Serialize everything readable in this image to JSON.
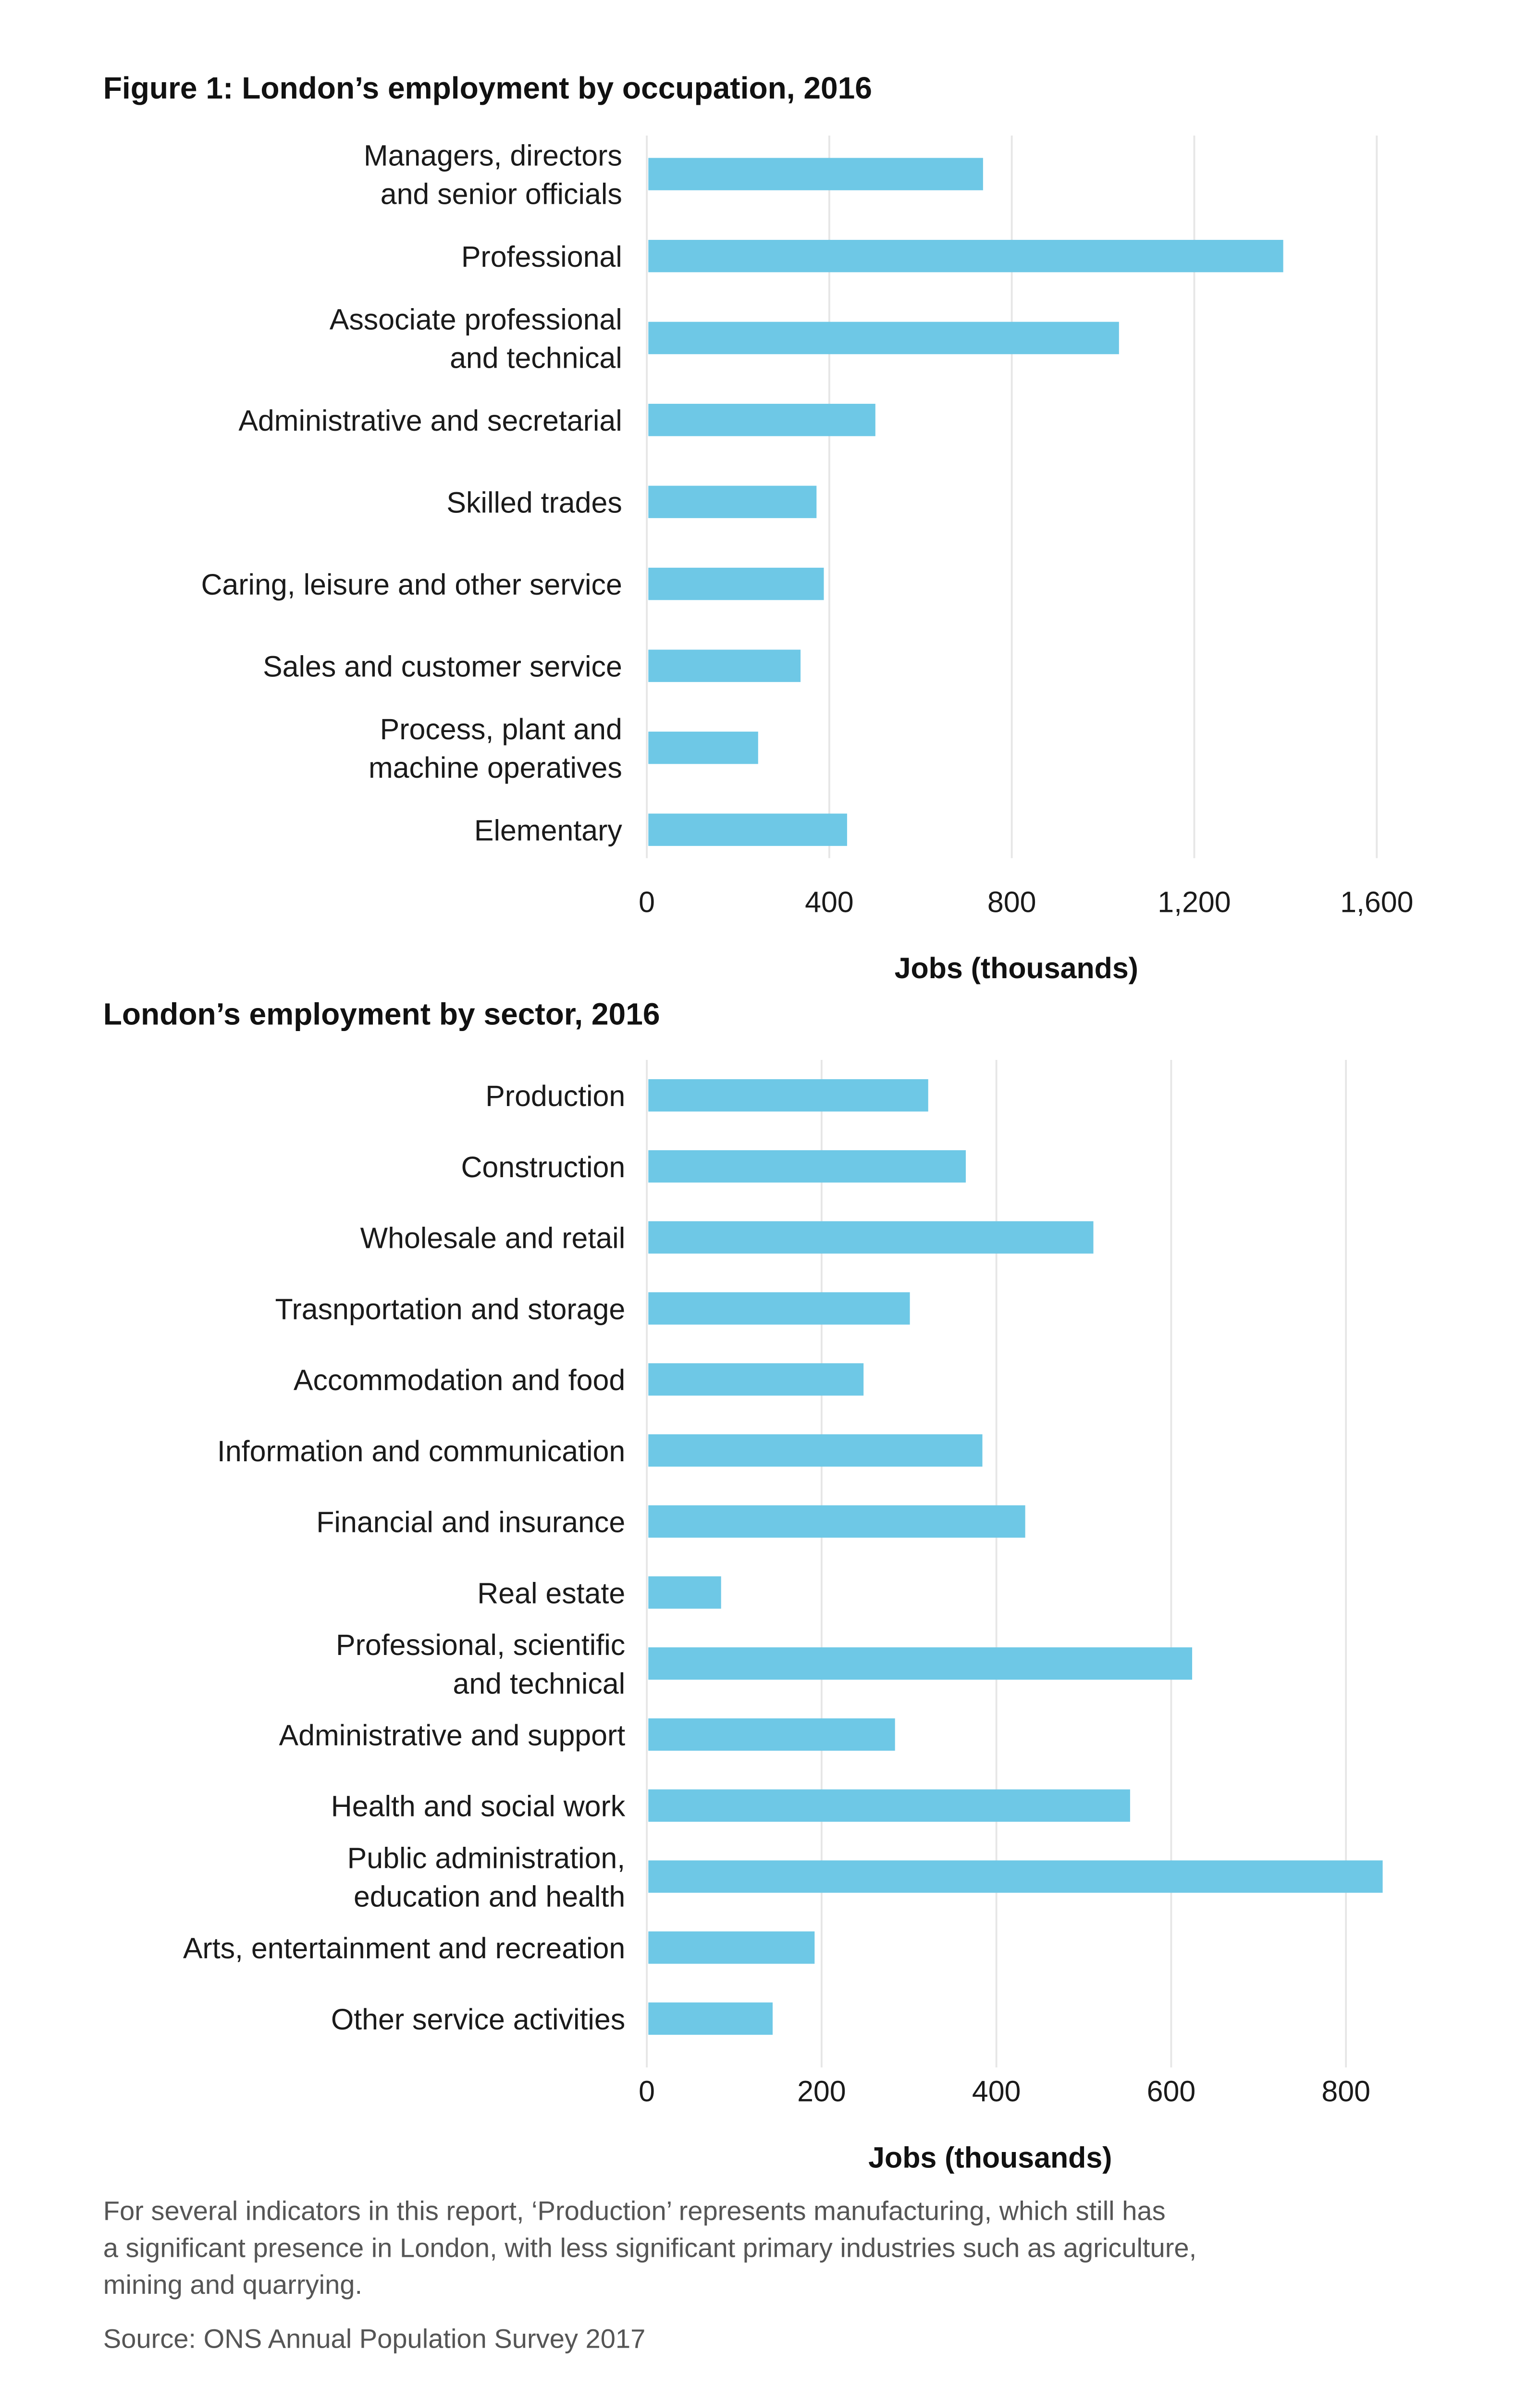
{
  "chart_data": [
    {
      "type": "bar",
      "orientation": "horizontal",
      "title": "Figure 1: London’s employment by occupation, 2016",
      "xlabel": "Jobs (thousands)",
      "ylabel": "",
      "xlim": [
        0,
        1600
      ],
      "xticks": [
        0,
        400,
        800,
        1200,
        1600
      ],
      "xtick_labels": [
        "0",
        "400",
        "800",
        "1,200",
        "1,600"
      ],
      "grid": true,
      "color": "#6ec8e6",
      "categories": [
        [
          "Managers, directors",
          "and senior officials"
        ],
        [
          "Professional"
        ],
        [
          "Associate professional",
          "and technical"
        ],
        [
          "Administrative and secretarial"
        ],
        [
          "Skilled trades"
        ],
        [
          "Caring, leisure and other service"
        ],
        [
          "Sales and customer service"
        ],
        [
          "Process, plant and",
          "machine operatives"
        ],
        [
          "Elementary"
        ]
      ],
      "values": [
        737,
        1395,
        1035,
        501,
        372,
        388,
        337,
        244,
        439
      ]
    },
    {
      "type": "bar",
      "orientation": "horizontal",
      "title": "London’s employment by sector, 2016",
      "xlabel": "Jobs (thousands)",
      "ylabel": "",
      "xlim": [
        0,
        800
      ],
      "xticks": [
        0,
        200,
        400,
        600,
        800
      ],
      "xtick_labels": [
        "0",
        "200",
        "400",
        "600",
        "800"
      ],
      "grid": true,
      "color": "#6ec8e6",
      "categories": [
        [
          "Production"
        ],
        [
          "Construction"
        ],
        [
          "Wholesale and retail"
        ],
        [
          "Trasnportation and storage"
        ],
        [
          "Accommodation and food"
        ],
        [
          "Information and communication"
        ],
        [
          "Financial and insurance"
        ],
        [
          "Real estate"
        ],
        [
          "Professional, scientific",
          "and technical"
        ],
        [
          "Administrative and support"
        ],
        [
          "Health and social work"
        ],
        [
          "Public administration,",
          "education and health"
        ],
        [
          "Arts, entertainment and recreation"
        ],
        [
          "Other service activities"
        ]
      ],
      "values": [
        322,
        365,
        511,
        301,
        248,
        384,
        433,
        85,
        624,
        284,
        553,
        842,
        192,
        144
      ]
    }
  ],
  "footnote": [
    "For several indicators in this report, ‘Production’ represents manufacturing, which still has",
    "a significant presence in London, with less significant primary industries such as agriculture,",
    "mining and quarrying."
  ],
  "source": "Source: ONS Annual Population Survey 2017"
}
